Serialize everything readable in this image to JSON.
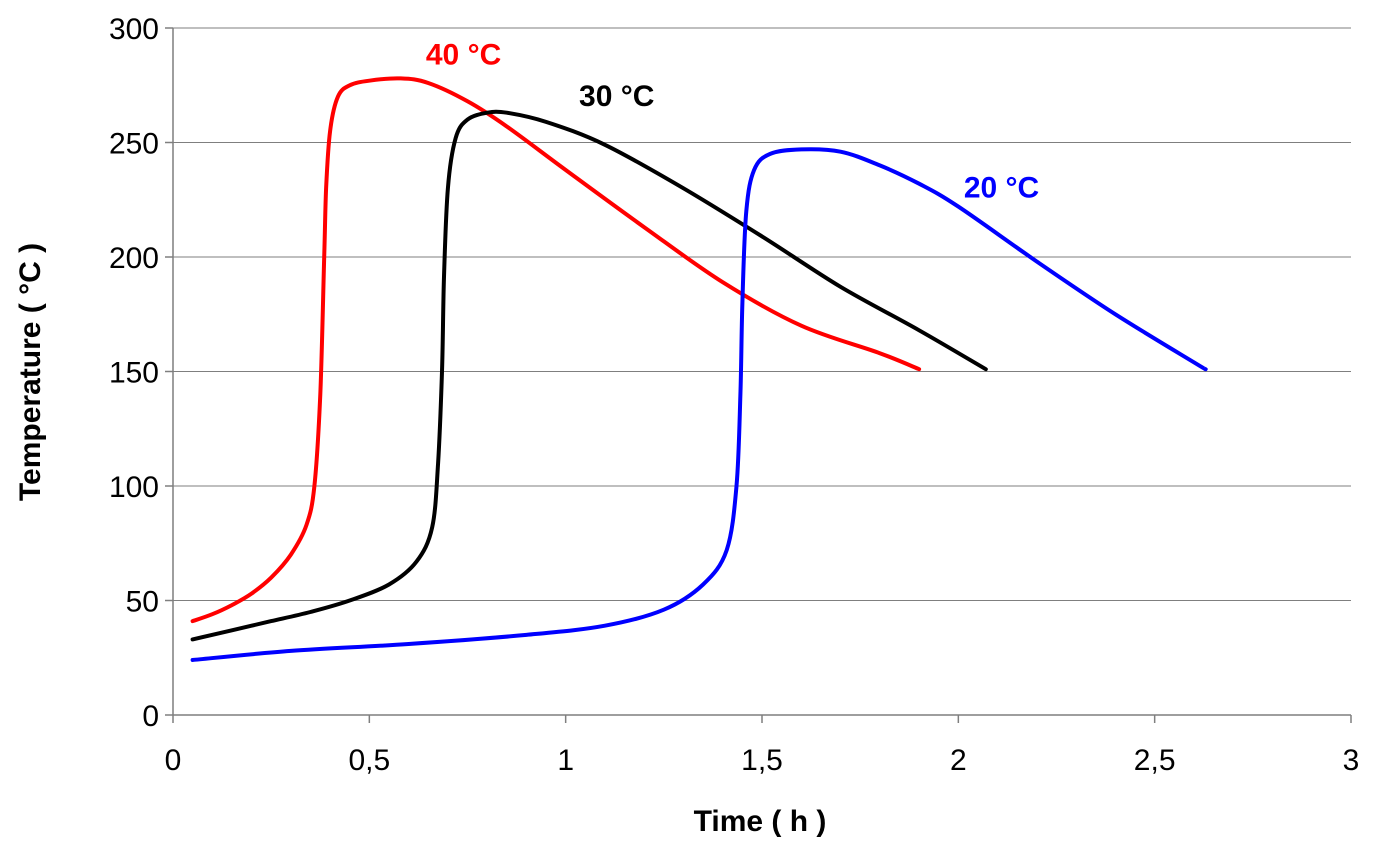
{
  "chart_data": {
    "type": "line",
    "xlabel": "Time ( h )",
    "ylabel": "Temperature ( °C )",
    "xlim": [
      0,
      3
    ],
    "ylim": [
      0,
      300
    ],
    "x_ticks": [
      "0",
      "0,5",
      "1",
      "1,5",
      "2",
      "2,5",
      "3"
    ],
    "y_ticks": [
      "0",
      "50",
      "100",
      "150",
      "200",
      "250",
      "300"
    ],
    "grid": "horizontal",
    "legend": "none",
    "series": [
      {
        "name": "40 °C",
        "color": "#ff0000",
        "x": [
          0.05,
          0.1,
          0.15,
          0.2,
          0.25,
          0.3,
          0.34,
          0.36,
          0.375,
          0.385,
          0.39,
          0.4,
          0.42,
          0.45,
          0.5,
          0.58,
          0.65,
          0.75,
          0.85,
          1.0,
          1.2,
          1.4,
          1.6,
          1.8,
          1.9
        ],
        "y": [
          41,
          44,
          48,
          53,
          60,
          70,
          83,
          100,
          140,
          200,
          230,
          255,
          270,
          275,
          277,
          278,
          276,
          268,
          257,
          238,
          213,
          189,
          170,
          158,
          151
        ]
      },
      {
        "name": "30 °C",
        "color": "#000000",
        "x": [
          0.05,
          0.15,
          0.25,
          0.35,
          0.45,
          0.55,
          0.62,
          0.66,
          0.675,
          0.685,
          0.69,
          0.7,
          0.72,
          0.75,
          0.8,
          0.85,
          0.95,
          1.1,
          1.3,
          1.5,
          1.7,
          1.9,
          2.07
        ],
        "y": [
          33,
          37,
          41,
          45,
          50,
          57,
          67,
          82,
          110,
          150,
          190,
          230,
          252,
          260,
          263,
          263,
          259,
          249,
          230,
          209,
          187,
          168,
          151
        ]
      },
      {
        "name": "20 °C",
        "color": "#0000ff",
        "x": [
          0.05,
          0.3,
          0.6,
          0.9,
          1.1,
          1.25,
          1.35,
          1.41,
          1.435,
          1.445,
          1.45,
          1.46,
          1.48,
          1.52,
          1.6,
          1.7,
          1.8,
          1.9,
          2.0,
          2.2,
          2.4,
          2.6,
          2.63
        ],
        "y": [
          24,
          28,
          31,
          35,
          39,
          46,
          57,
          72,
          100,
          140,
          180,
          220,
          238,
          245,
          247,
          246,
          240,
          232,
          222,
          198,
          175,
          154,
          151
        ]
      }
    ],
    "annotations": [
      {
        "text": "40 °C",
        "color": "#ff0000",
        "x": 0.74,
        "y": 284
      },
      {
        "text": "30 °C",
        "color": "#000000",
        "x": 1.13,
        "y": 266
      },
      {
        "text": "20 °C",
        "color": "#0000ff",
        "x": 2.11,
        "y": 226
      }
    ]
  }
}
